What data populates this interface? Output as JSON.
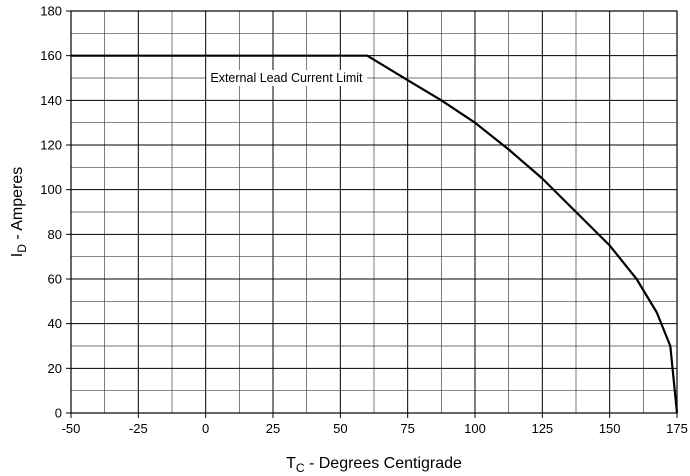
{
  "chart_data": {
    "type": "line",
    "title": "",
    "xlabel": {
      "main": "T",
      "sub": "C",
      "rest": " - Degrees Centigrade"
    },
    "ylabel": {
      "main": "I",
      "sub": "D",
      "rest": " - Amperes"
    },
    "xlim": [
      -50,
      175
    ],
    "ylim": [
      0,
      180
    ],
    "xticks": [
      -50,
      -25,
      0,
      25,
      50,
      75,
      100,
      125,
      150,
      175
    ],
    "yticks": [
      0,
      20,
      40,
      60,
      80,
      100,
      120,
      140,
      160,
      180
    ],
    "x_gridlines": [
      -50,
      -37.5,
      -25,
      -12.5,
      0,
      12.5,
      25,
      37.5,
      50,
      62.5,
      75,
      87.5,
      100,
      112.5,
      125,
      137.5,
      150,
      162.5,
      175
    ],
    "y_gridlines": [
      0,
      10,
      20,
      30,
      40,
      50,
      60,
      70,
      80,
      90,
      100,
      110,
      120,
      130,
      140,
      150,
      160,
      170,
      180
    ],
    "grid": true,
    "series": [
      {
        "x": [
          -50,
          60,
          75,
          87.5,
          100,
          112.5,
          125,
          137.5,
          150,
          160,
          167.5,
          172.5,
          175
        ],
        "y": [
          160,
          160,
          149,
          140,
          130,
          118,
          105,
          90,
          75,
          60,
          45,
          30,
          0
        ]
      }
    ],
    "annotations": [
      {
        "text": "External Lead Current Limit",
        "x": 30,
        "y": 150
      }
    ]
  }
}
